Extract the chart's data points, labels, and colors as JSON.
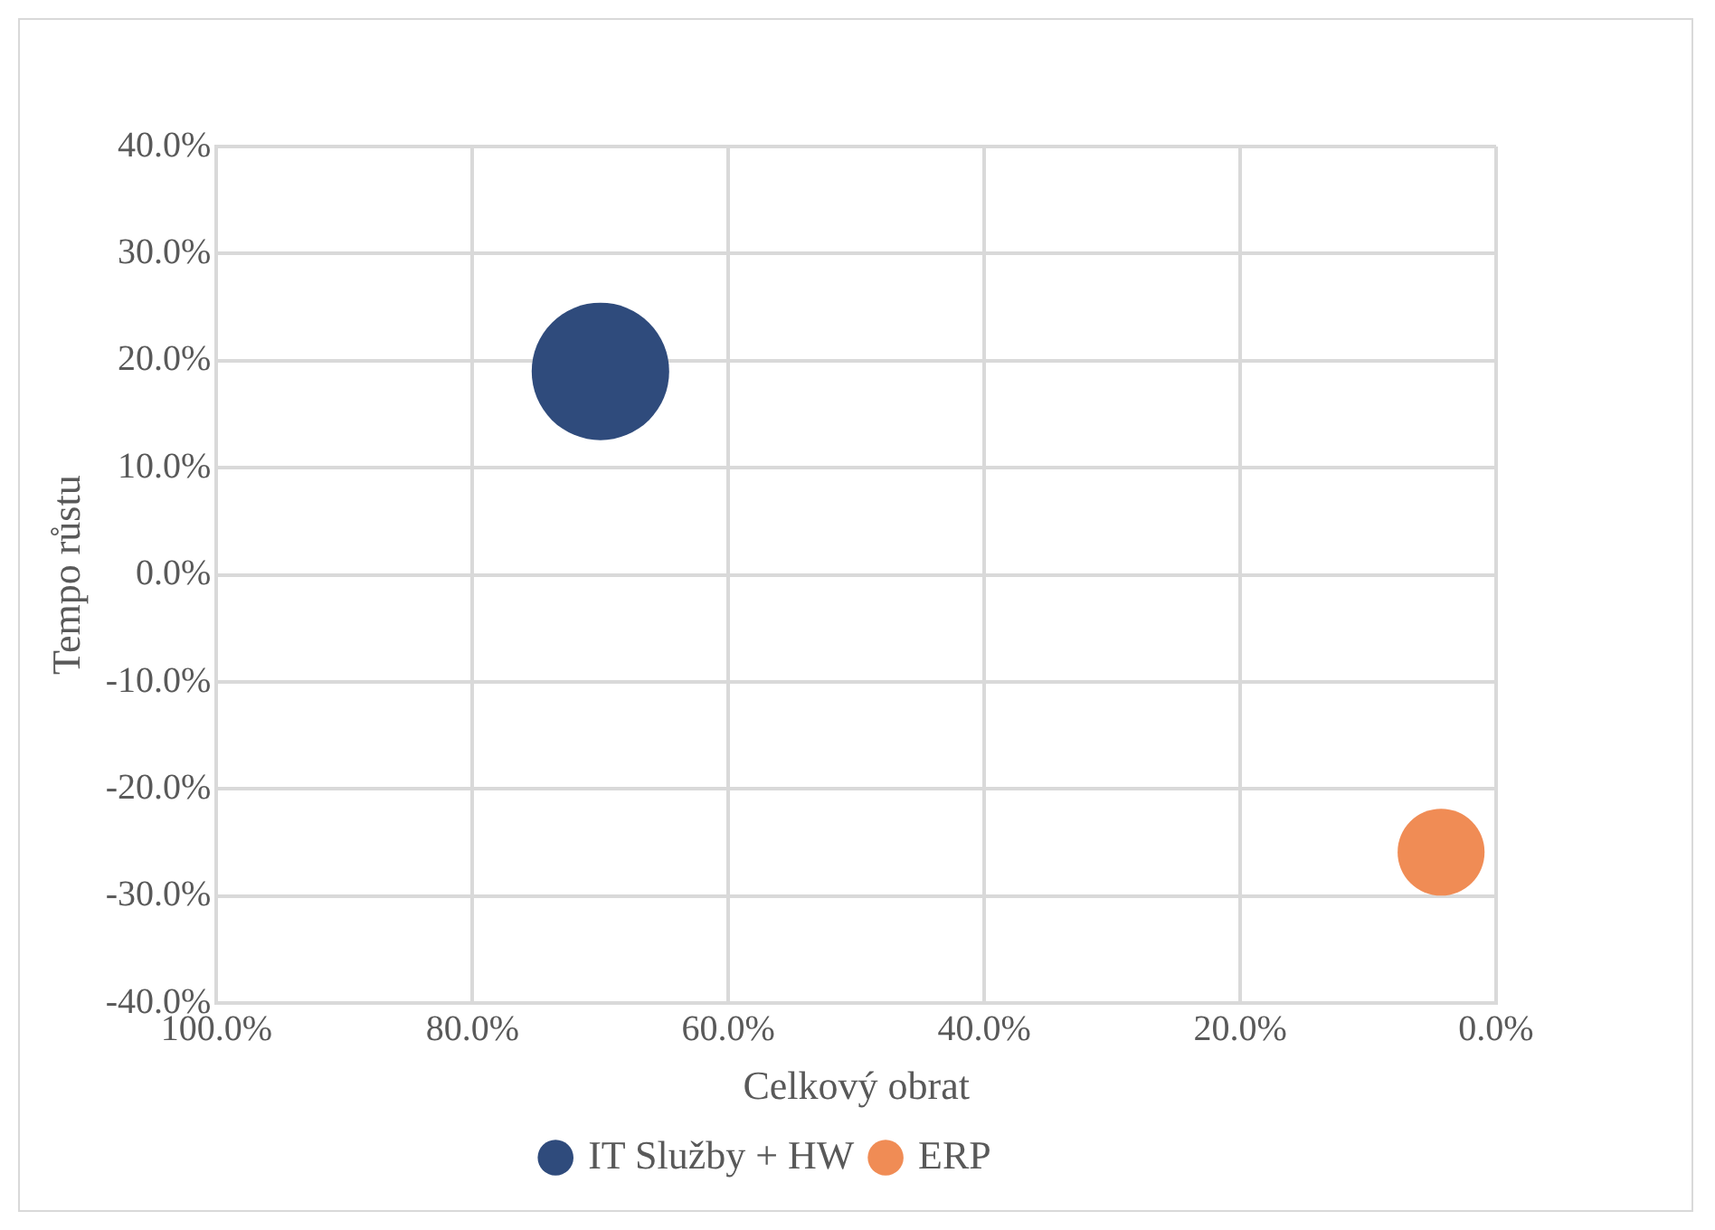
{
  "chart_data": {
    "type": "bubble",
    "xlabel": "Celkový obrat",
    "ylabel": "Tempo růstu",
    "series": [
      {
        "name": "IT Služby + HW",
        "color": "#2f4b7c",
        "x": [
          70.0
        ],
        "values": [
          19
        ],
        "sizes": [
          1
        ]
      },
      {
        "name": "ERP",
        "color": "#f08c55",
        "x": [
          4.3
        ],
        "values": [
          -25.9
        ],
        "sizes": [
          0.4
        ]
      }
    ],
    "xlim": [
      100,
      0
    ],
    "xticks": [
      {
        "value": 100,
        "label": "100.0%"
      },
      {
        "value": 80,
        "label": "80.0%"
      },
      {
        "value": 60,
        "label": "60.0%"
      },
      {
        "value": 40,
        "label": "40.0%"
      },
      {
        "value": 20,
        "label": "20.0%"
      },
      {
        "value": 0,
        "label": "0.0%"
      }
    ],
    "ylim": [
      -40,
      40
    ],
    "yticks": [
      {
        "value": -40,
        "label": "-40.0%"
      },
      {
        "value": -30,
        "label": "-30.0%"
      },
      {
        "value": -20,
        "label": "-20.0%"
      },
      {
        "value": -10,
        "label": "-10.0%"
      },
      {
        "value": 0,
        "label": "0.0%"
      },
      {
        "value": 10,
        "label": "10.0%"
      },
      {
        "value": 20,
        "label": "20.0%"
      },
      {
        "value": 30,
        "label": "30.0%"
      },
      {
        "value": 40,
        "label": "40.0%"
      }
    ],
    "grid": true,
    "legend": "bottom"
  }
}
